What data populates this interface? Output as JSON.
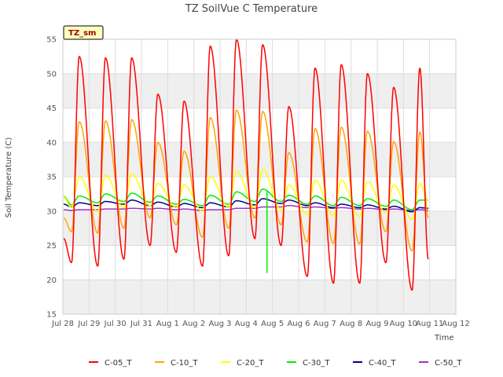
{
  "chart_data": {
    "type": "line",
    "title": "TZ SoilVue C Temperature",
    "xlabel": "Time",
    "ylabel": "Soil Temperature (C)",
    "badge": "TZ_sm",
    "ylim": [
      15,
      55
    ],
    "yticks": [
      15,
      20,
      25,
      30,
      35,
      40,
      45,
      50,
      55
    ],
    "xlim": [
      "2024-07-28",
      "2024-08-12"
    ],
    "xtick_labels": [
      "Jul 28",
      "Jul 29",
      "Jul 30",
      "Jul 31",
      "Aug 1",
      "Aug 2",
      "Aug 3",
      "Aug 4",
      "Aug 5",
      "Aug 6",
      "Aug 7",
      "Aug 8",
      "Aug 9",
      "Aug 10",
      "Aug 11",
      "Aug 12"
    ],
    "grid": true,
    "legend_position": "bottom",
    "series": [
      {
        "name": "C-05_T",
        "color": "#ff0000",
        "min": [
          22.5,
          22,
          23,
          25,
          24,
          22,
          23.5,
          26,
          25,
          20.5,
          19.5,
          19.5,
          22.5,
          18.5
        ],
        "max": [
          52.5,
          52.3,
          52.3,
          47,
          46,
          54,
          55,
          54.2,
          45.2,
          50.8,
          51.3,
          50,
          48,
          50.8
        ],
        "start": 26,
        "end": 23
      },
      {
        "name": "C-10_T",
        "color": "#ffa500",
        "min": [
          27,
          26.8,
          27.5,
          29,
          28,
          26.2,
          27.5,
          29,
          28,
          25.5,
          25.3,
          25.2,
          27,
          24.2
        ],
        "max": [
          43,
          43.1,
          43.3,
          40,
          38.7,
          43.6,
          44.7,
          44.5,
          38.5,
          42,
          42.2,
          41.6,
          40.1,
          41.5
        ],
        "start": 29,
        "end": 29
      },
      {
        "name": "C-20_T",
        "color": "#ffff00",
        "min": [
          30.5,
          30,
          30.5,
          30.8,
          30.5,
          30,
          30.5,
          30.5,
          30.2,
          29.5,
          29.3,
          29.2,
          29.8,
          28.8
        ],
        "max": [
          35,
          35.2,
          35.4,
          34,
          33.8,
          35,
          35.8,
          36.1,
          33.8,
          34.5,
          34.5,
          34.3,
          33.8,
          34
        ],
        "start": 32,
        "end": 31.5
      },
      {
        "name": "C-30_T",
        "color": "#00ee00",
        "min": [
          30.9,
          31.2,
          31.4,
          31.3,
          31,
          30.8,
          31,
          31.4,
          31.4,
          31,
          30.8,
          30.8,
          30.7,
          30.2
        ],
        "max": [
          32.2,
          32.5,
          32.6,
          32.2,
          31.7,
          32.3,
          32.8,
          33.2,
          32.3,
          32.2,
          32,
          31.8,
          31.6,
          31.6
        ],
        "start": 32.1,
        "end": 31.6
      },
      {
        "name": "C-40_T",
        "color": "#00008b",
        "min": [
          30.6,
          30.8,
          31,
          30.8,
          30.6,
          30.5,
          30.6,
          30.9,
          31.1,
          30.8,
          30.5,
          30.5,
          30.3,
          29.9
        ],
        "max": [
          31.2,
          31.4,
          31.6,
          31.3,
          31.1,
          31.2,
          31.5,
          31.8,
          31.6,
          31.2,
          31,
          30.9,
          30.7,
          30.5
        ],
        "start": 31,
        "end": 30.4
      },
      {
        "name": "C-50_T",
        "color": "#9932cc",
        "min": [
          30.1,
          30.2,
          30.3,
          30.3,
          30.2,
          30.1,
          30.2,
          30.4,
          30.6,
          30.5,
          30.4,
          30.3,
          30.2,
          30.1
        ],
        "max": [
          30.2,
          30.3,
          30.4,
          30.4,
          30.3,
          30.2,
          30.4,
          30.6,
          30.8,
          30.6,
          30.5,
          30.4,
          30.3,
          30.2
        ],
        "start": 30.2,
        "end": 30.1
      }
    ],
    "annotations": [
      {
        "series": "C-30_T",
        "type": "spike",
        "x": "2024-08-04 19:00",
        "y": 21
      }
    ]
  }
}
